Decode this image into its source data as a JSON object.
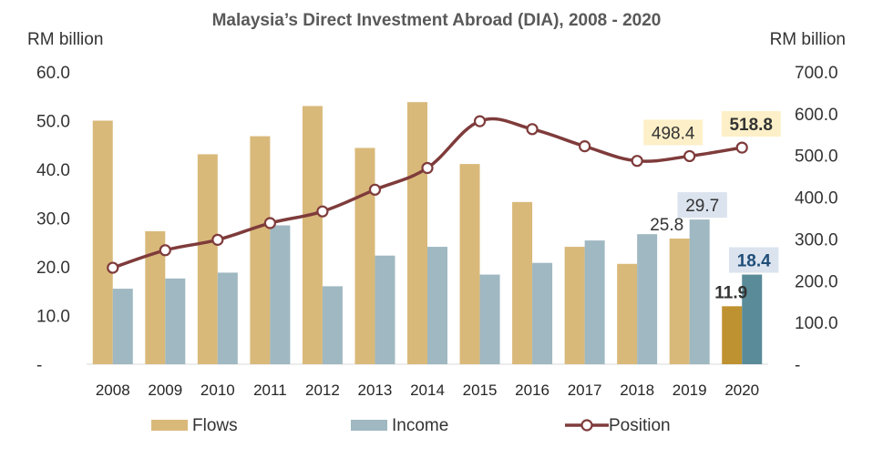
{
  "chart_data": {
    "type": "bar+line",
    "title": "Malaysia’s Direct Investment Abroad (DIA), 2008 - 2020",
    "y_left_label": "RM billion",
    "y_right_label": "RM billion",
    "y_left_ticks": [
      "-",
      "10.0",
      "20.0",
      "30.0",
      "40.0",
      "50.0",
      "60.0"
    ],
    "y_right_ticks": [
      "-",
      "100.0",
      "200.0",
      "300.0",
      "400.0",
      "500.0",
      "600.0",
      "700.0"
    ],
    "y_left_lim": [
      0,
      60
    ],
    "y_right_lim": [
      0,
      700
    ],
    "categories": [
      "2008",
      "2009",
      "2010",
      "2011",
      "2012",
      "2013",
      "2014",
      "2015",
      "2016",
      "2017",
      "2018",
      "2019",
      "2020"
    ],
    "series": [
      {
        "name": "Flows",
        "type": "bar",
        "axis": "left",
        "color": "#d9b97a",
        "highlight_color": "#bf9231",
        "values": [
          50.0,
          27.3,
          43.1,
          46.8,
          53.0,
          44.4,
          53.8,
          41.1,
          33.3,
          24.1,
          20.6,
          25.8,
          11.9
        ]
      },
      {
        "name": "Income",
        "type": "bar",
        "axis": "left",
        "color": "#9fb8c1",
        "highlight_color": "#5a8b99",
        "values": [
          15.5,
          17.6,
          18.8,
          28.5,
          16.0,
          22.3,
          24.1,
          18.4,
          20.8,
          25.4,
          26.7,
          29.7,
          18.4
        ]
      },
      {
        "name": "Position",
        "type": "line",
        "axis": "right",
        "color": "#7f3b3b",
        "values": [
          231,
          273,
          298,
          338,
          366,
          418,
          470,
          582,
          563,
          522,
          487,
          498.4,
          518.8
        ]
      }
    ],
    "data_labels": [
      {
        "series": "Flows",
        "category": "2019",
        "text": "25.8",
        "bold": false,
        "box": null,
        "color": "#333333"
      },
      {
        "series": "Flows",
        "category": "2020",
        "text": "11.9",
        "bold": true,
        "box": null,
        "color": "#333333"
      },
      {
        "series": "Income",
        "category": "2019",
        "text": "29.7",
        "bold": false,
        "box": "#dbe3ee",
        "color": "#333333"
      },
      {
        "series": "Income",
        "category": "2020",
        "text": "18.4",
        "bold": true,
        "box": "#dbe3ee",
        "color": "#1f4e79"
      },
      {
        "series": "Position",
        "category": "2019",
        "text": "498.4",
        "bold": false,
        "box": "#fdf0c8",
        "color": "#333333"
      },
      {
        "series": "Position",
        "category": "2020",
        "text": "518.8",
        "bold": true,
        "box": "#fdf0c8",
        "color": "#333333"
      }
    ],
    "legend": {
      "placement": "bottom",
      "entries": [
        "Flows",
        "Income",
        "Position"
      ]
    },
    "grid": false
  }
}
